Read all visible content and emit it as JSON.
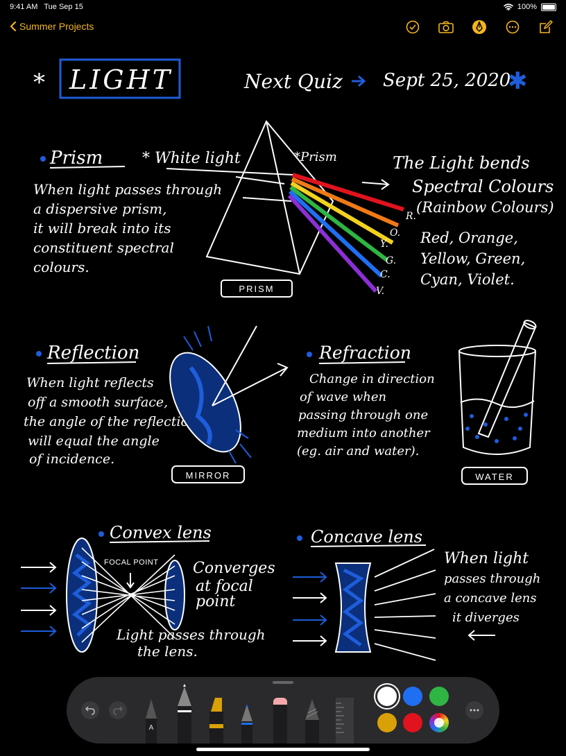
{
  "status": {
    "time": "9:41 AM",
    "date": "Tue Sep 15",
    "battery": "100%"
  },
  "nav": {
    "back_label": "Summer Projects"
  },
  "colors": {
    "accent": "#f2b51f",
    "ink_blue": "#1e5ddb"
  },
  "note": {
    "title": "LIGHT",
    "quiz_label": "Next Quiz",
    "quiz_date": "Sept 25, 2020",
    "prism": {
      "heading": "Prism",
      "white_light": "* White light",
      "prism_label": "*Prism",
      "body": [
        "When light passes through",
        "a dispersive prism,",
        "it will break into its",
        "constituent spectral",
        "colours."
      ],
      "box_label": "PRISM",
      "bends": [
        "The Light bends",
        "Spectral Colours",
        "(Rainbow Colours)"
      ],
      "colors_list": [
        "Red, Orange,",
        "Yellow, Green,",
        "Cyan, Violet."
      ],
      "letters": [
        "R.",
        "O.",
        "Y.",
        "G.",
        "C.",
        "V."
      ]
    },
    "reflection": {
      "heading": "Reflection",
      "body": [
        "When light reflects",
        "off a smooth surface,",
        "the angle of the reflection",
        "will equal the angle",
        "of incidence."
      ],
      "box_label": "MIRROR"
    },
    "refraction": {
      "heading": "Refraction",
      "body": [
        "Change in direction",
        "of wave when",
        "passing through one",
        "medium into another",
        "(eg. air and water)."
      ],
      "box_label": "WATER"
    },
    "convex": {
      "heading": "Convex lens",
      "focal": "FOCAL POINT",
      "converges": [
        "Converges",
        "at focal",
        "point"
      ],
      "passes": [
        "Light passes through",
        "the lens."
      ]
    },
    "concave": {
      "heading": "Concave lens",
      "body": [
        "When light",
        "passes through",
        "a concave lens",
        "it diverges"
      ]
    }
  },
  "palette": {
    "swatches": [
      "#ffffff",
      "#1f6ff2",
      "#2fb544",
      "#d9a008",
      "#e0131e",
      "multicolor"
    ]
  }
}
